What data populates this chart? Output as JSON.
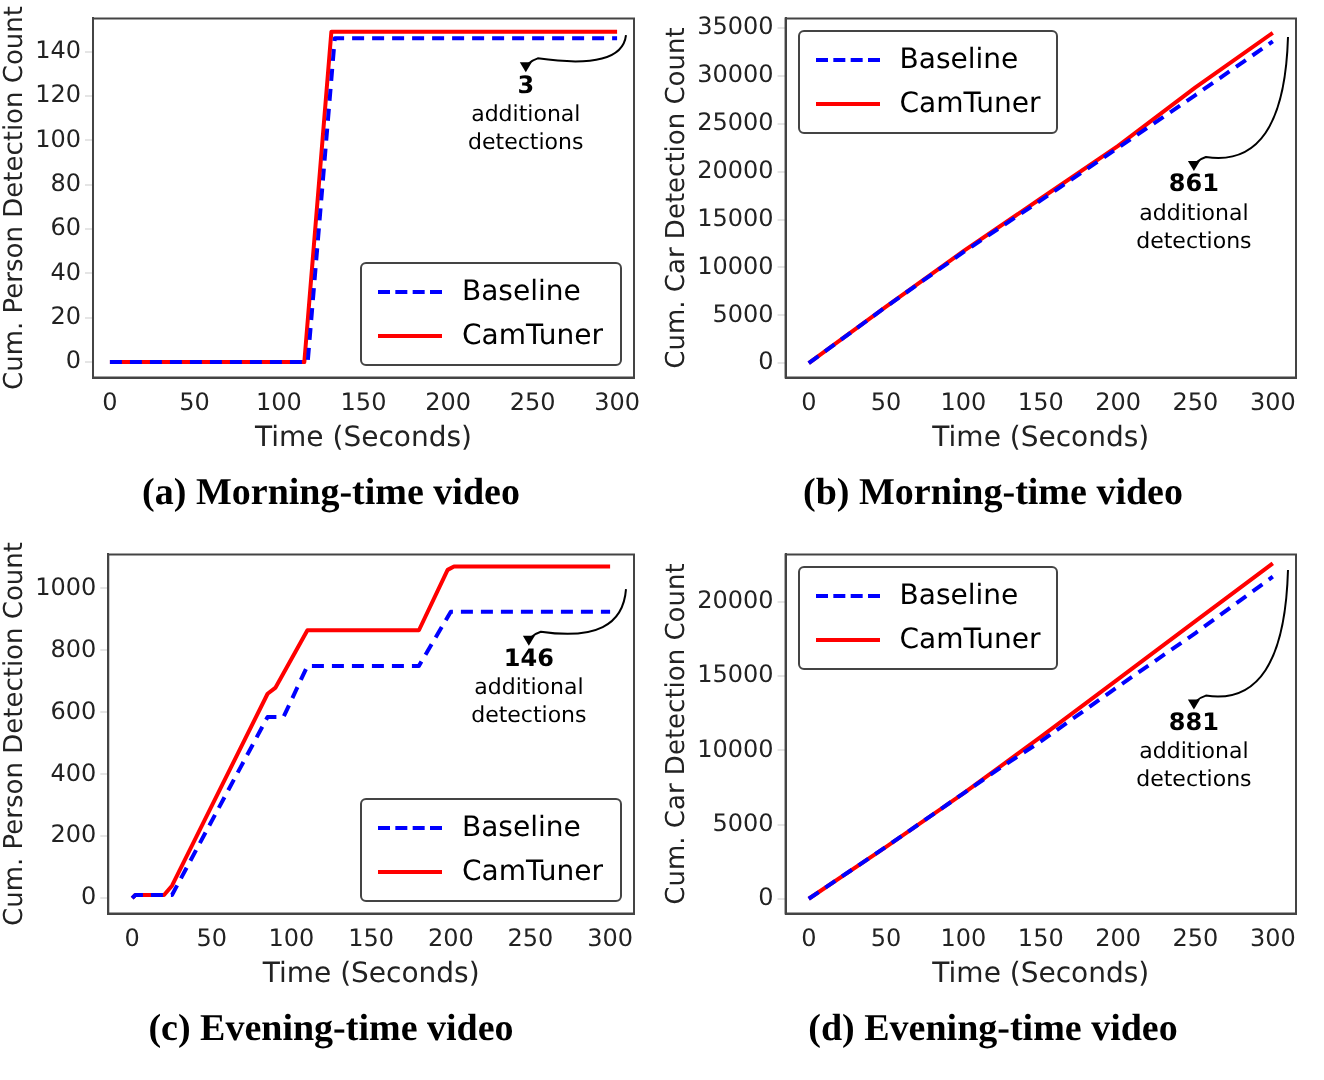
{
  "chart_data": [
    {
      "type": "line",
      "title": "(a) Morning-time video",
      "xlabel": "Time (Seconds)",
      "ylabel": "Cum. Person Detection Count",
      "xlim": [
        -10,
        310
      ],
      "xticks": [
        0,
        50,
        100,
        150,
        200,
        250,
        300
      ],
      "ylim": [
        -7,
        155
      ],
      "yticks": [
        0,
        20,
        40,
        60,
        80,
        100,
        120,
        140
      ],
      "grid": false,
      "legend": "bottom right",
      "marker": "none",
      "annotations": [
        "3 additional detections"
      ],
      "series": [
        {
          "name": "Baseline",
          "color": "#0000ff",
          "line_style": "dashed",
          "x": [
            0,
            117,
            133,
            300
          ],
          "values": [
            0,
            0,
            146,
            146
          ]
        },
        {
          "name": "CamTuner",
          "color": "#ff0000",
          "line_style": "solid",
          "x": [
            0,
            115,
            131,
            300
          ],
          "values": [
            0,
            0,
            149,
            149
          ]
        }
      ]
    },
    {
      "type": "line",
      "title": "(b) Morning-time video",
      "xlabel": "Time (Seconds)",
      "ylabel": "Cum. Car Detection Count",
      "xlim": [
        -15,
        315
      ],
      "xticks": [
        0,
        50,
        100,
        150,
        200,
        250,
        300
      ],
      "ylim": [
        -1500,
        36000
      ],
      "yticks": [
        0,
        5000,
        10000,
        15000,
        20000,
        25000,
        30000,
        35000
      ],
      "grid": false,
      "legend": "top left",
      "marker": "none",
      "annotations": [
        "861 additional detections"
      ],
      "series": [
        {
          "name": "Baseline",
          "color": "#0000ff",
          "line_style": "dashed",
          "x": [
            0,
            50,
            100,
            150,
            200,
            250,
            300
          ],
          "values": [
            0,
            5900,
            11600,
            17000,
            22500,
            28000,
            33600
          ]
        },
        {
          "name": "CamTuner",
          "color": "#ff0000",
          "line_style": "solid",
          "x": [
            0,
            50,
            100,
            150,
            200,
            250,
            300
          ],
          "values": [
            0,
            5900,
            11700,
            17200,
            22700,
            28800,
            34500
          ]
        }
      ]
    },
    {
      "type": "line",
      "title": "(c) Evening-time video",
      "xlabel": "Time (Seconds)",
      "ylabel": "Cum. Person Detection Count",
      "xlim": [
        -15,
        315
      ],
      "xticks": [
        0,
        50,
        100,
        150,
        200,
        250,
        300
      ],
      "ylim": [
        -50,
        1110
      ],
      "yticks": [
        0,
        200,
        400,
        600,
        800,
        1000
      ],
      "grid": false,
      "legend": "bottom right",
      "marker": "none",
      "annotations": [
        "146 additional detections"
      ],
      "series": [
        {
          "name": "Baseline",
          "color": "#0000ff",
          "line_style": "dashed",
          "x": [
            0,
            2,
            25,
            85,
            95,
            110,
            180,
            200,
            300
          ],
          "values": [
            0,
            10,
            10,
            585,
            585,
            750,
            750,
            925,
            925
          ]
        },
        {
          "name": "CamTuner",
          "color": "#ff0000",
          "line_style": "solid",
          "x": [
            0,
            2,
            20,
            25,
            85,
            90,
            110,
            180,
            198,
            202,
            300
          ],
          "values": [
            0,
            10,
            10,
            40,
            660,
            680,
            865,
            865,
            1060,
            1071,
            1071
          ]
        }
      ]
    },
    {
      "type": "line",
      "title": "(d) Evening-time video",
      "xlabel": "Time (Seconds)",
      "ylabel": "Cum. Car Detection Count",
      "xlim": [
        -15,
        315
      ],
      "xticks": [
        0,
        50,
        100,
        150,
        200,
        250,
        300
      ],
      "ylim": [
        -1000,
        23200
      ],
      "yticks": [
        0,
        5000,
        10000,
        15000,
        20000
      ],
      "grid": false,
      "legend": "top left",
      "marker": "none",
      "annotations": [
        "881 additional detections"
      ],
      "series": [
        {
          "name": "Baseline",
          "color": "#0000ff",
          "line_style": "dashed",
          "x": [
            0,
            50,
            100,
            125,
            150,
            200,
            250,
            300
          ],
          "values": [
            0,
            3500,
            7100,
            8900,
            10600,
            14300,
            17900,
            21700
          ]
        },
        {
          "name": "CamTuner",
          "color": "#ff0000",
          "line_style": "solid",
          "x": [
            0,
            50,
            100,
            150,
            200,
            250,
            300
          ],
          "values": [
            0,
            3500,
            7100,
            10900,
            14800,
            18700,
            22600
          ]
        }
      ]
    }
  ]
}
